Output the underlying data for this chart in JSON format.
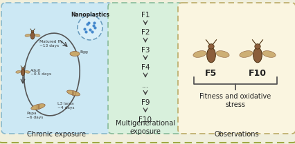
{
  "outer_bg": "#f0efdc",
  "panel1_bg": "#cce8f4",
  "panel1_border": "#88b8cc",
  "panel2_bg": "#d8f0dc",
  "panel2_border": "#88bb99",
  "panel3_bg": "#faf5e0",
  "panel3_border": "#bbaa66",
  "outer_border": "#a0a844",
  "label1": "Chronic exposure",
  "label2": "Multigenerational\nexposure",
  "label3": "Observations",
  "generations": [
    "F1",
    "F2",
    "F3",
    "F4",
    "...",
    "F9",
    "F10"
  ],
  "obs_label": "Fitness and oxidative\nstress",
  "nanoplastics_label": "Nanoplastics",
  "cycle_labels_matured": "Matured fly\n~13 days",
  "cycle_label_egg": "Egg",
  "cycle_label_l3": "L3 larva\n~4 days",
  "cycle_label_pupa": "Pupa\n~6 days",
  "cycle_label_adult": "Adult\n~0.5 days",
  "f5_label": "F5",
  "f10_label": "F10",
  "text_color": "#222222",
  "fly_body": "#8B5E3C",
  "fly_wing": "#c8a86a",
  "fly_dark": "#4a2e0e",
  "ellipse_color": "#555555",
  "nano_fill": "#d8eef8",
  "nano_border": "#6699bb",
  "nano_dot": "#4488cc",
  "arrow_color": "#444444"
}
